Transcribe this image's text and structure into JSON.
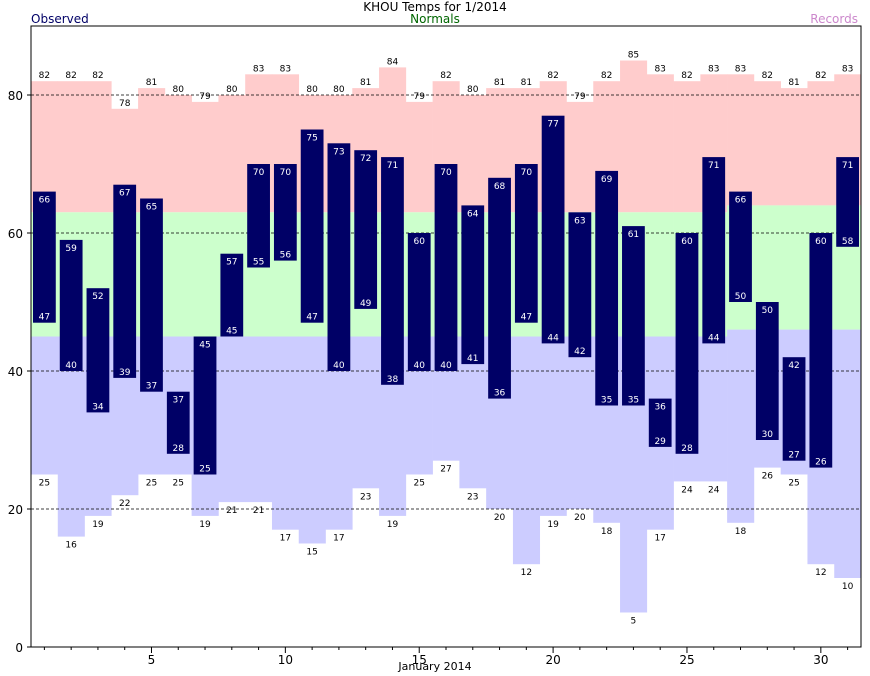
{
  "chart_data": {
    "type": "bar",
    "title": "KHOU Temps for 1/2014",
    "xlabel": "January 2014",
    "ylabel": "",
    "ylim": [
      0,
      90
    ],
    "yticks": [
      0,
      20,
      40,
      60,
      80
    ],
    "xticks": [
      5,
      10,
      15,
      20,
      25,
      30
    ],
    "grid": true,
    "legend": {
      "observed": "Observed",
      "normals": "Normals",
      "records": "Records"
    },
    "colors": {
      "observed": "#000066",
      "normals": "#ccffcc",
      "records_high": "#ffcccc",
      "records_low": "#ccccff",
      "legend_observed": "#000066",
      "legend_normals": "#006600",
      "legend_records": "#cc88cc"
    },
    "days": [
      1,
      2,
      3,
      4,
      5,
      6,
      7,
      8,
      9,
      10,
      11,
      12,
      13,
      14,
      15,
      16,
      17,
      18,
      19,
      20,
      21,
      22,
      23,
      24,
      25,
      26,
      27,
      28,
      29,
      30,
      31
    ],
    "series": [
      {
        "name": "Observed High",
        "values": [
          66,
          59,
          52,
          67,
          65,
          37,
          45,
          57,
          70,
          70,
          75,
          73,
          72,
          71,
          60,
          70,
          64,
          68,
          70,
          77,
          63,
          69,
          61,
          36,
          60,
          71,
          66,
          50,
          42,
          60,
          71
        ]
      },
      {
        "name": "Observed Low",
        "values": [
          47,
          40,
          34,
          39,
          37,
          28,
          25,
          45,
          55,
          56,
          47,
          40,
          49,
          38,
          40,
          40,
          41,
          36,
          47,
          44,
          42,
          35,
          35,
          29,
          28,
          44,
          50,
          30,
          27,
          26,
          58
        ]
      },
      {
        "name": "Record High",
        "values": [
          82,
          82,
          82,
          78,
          81,
          80,
          79,
          80,
          83,
          83,
          80,
          80,
          81,
          84,
          79,
          82,
          80,
          81,
          81,
          82,
          79,
          82,
          85,
          83,
          82,
          83,
          83,
          82,
          81,
          82,
          83
        ]
      },
      {
        "name": "Record Low",
        "values": [
          25,
          16,
          19,
          22,
          25,
          25,
          19,
          21,
          21,
          17,
          15,
          17,
          23,
          19,
          25,
          27,
          23,
          20,
          12,
          19,
          20,
          18,
          5,
          17,
          24,
          24,
          18,
          26,
          25,
          12,
          10
        ]
      },
      {
        "name": "Normal High",
        "values": [
          63,
          63,
          63,
          63,
          63,
          63,
          63,
          63,
          63,
          63,
          63,
          63,
          63,
          63,
          63,
          63,
          63,
          63,
          63,
          63,
          63,
          63,
          63,
          63,
          63,
          63,
          64,
          64,
          64,
          64,
          64
        ]
      },
      {
        "name": "Normal Low",
        "values": [
          45,
          45,
          45,
          45,
          45,
          45,
          45,
          45,
          45,
          45,
          45,
          45,
          45,
          45,
          45,
          45,
          45,
          45,
          45,
          45,
          45,
          45,
          45,
          45,
          45,
          45,
          46,
          46,
          46,
          46,
          46
        ]
      }
    ]
  }
}
